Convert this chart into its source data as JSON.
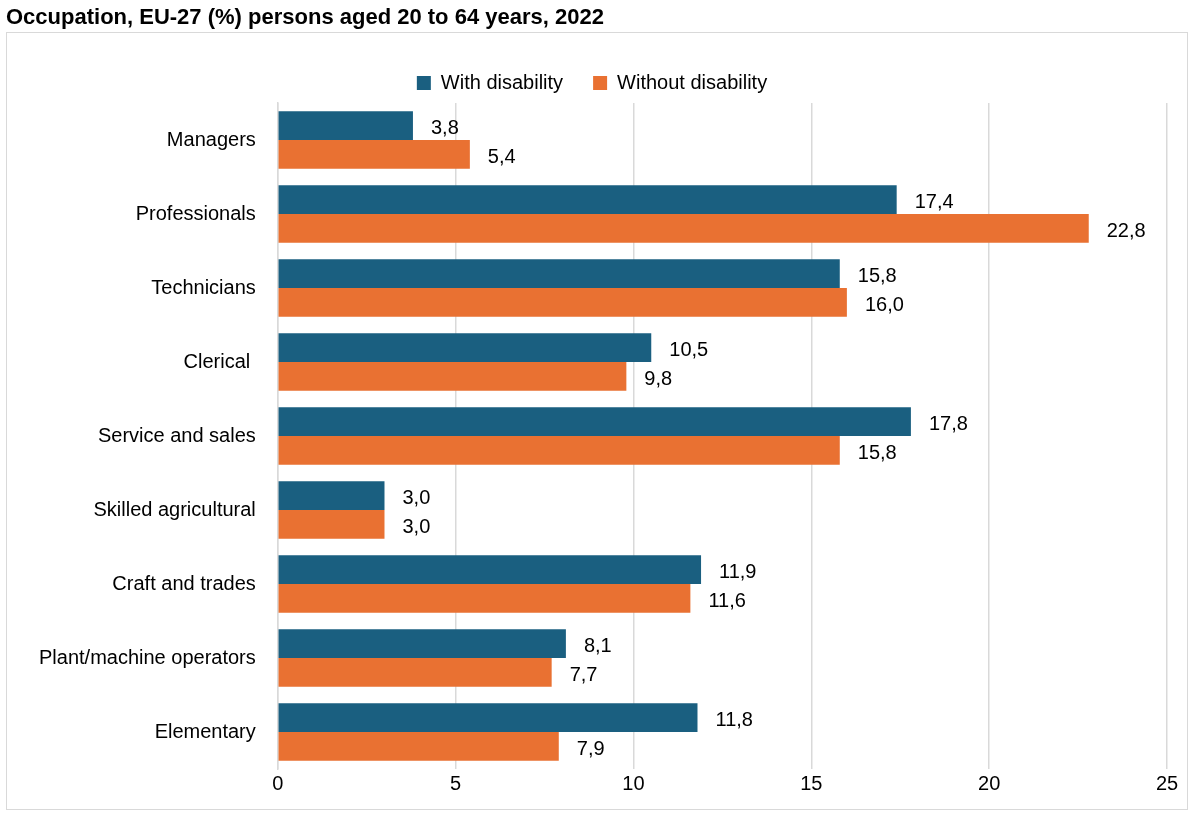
{
  "chart_data": {
    "type": "bar",
    "orientation": "horizontal",
    "title": "Occupation, EU-27 (%) persons aged 20 to 64 years, 2022",
    "categories": [
      "Managers",
      "Professionals",
      "Technicians",
      "Clerical ",
      "Service and sales",
      "Skilled agricultural",
      "Craft and trades",
      "Plant/machine operators",
      "Elementary"
    ],
    "series": [
      {
        "name": "With disability",
        "color": "#1a5f80",
        "values": [
          3.8,
          17.4,
          15.8,
          10.5,
          17.8,
          3.0,
          11.9,
          8.1,
          11.8
        ],
        "value_labels": [
          "3,8",
          "17,4",
          "15,8",
          "10,5",
          "17,8",
          "3,0",
          "11,9",
          "8,1",
          "11,8"
        ]
      },
      {
        "name": "Without disability",
        "color": "#e97132",
        "values": [
          5.4,
          22.8,
          16.0,
          9.8,
          15.8,
          3.0,
          11.6,
          7.7,
          7.9
        ],
        "value_labels": [
          "5,4",
          "22,8",
          "16,0",
          "9,8",
          "15,8",
          "3,0",
          "11,6",
          "7,7",
          "7,9"
        ]
      }
    ],
    "xlim": [
      0,
      25
    ],
    "xticks": [
      0,
      5,
      10,
      15,
      20,
      25
    ],
    "grid": "x",
    "legend": "top"
  }
}
